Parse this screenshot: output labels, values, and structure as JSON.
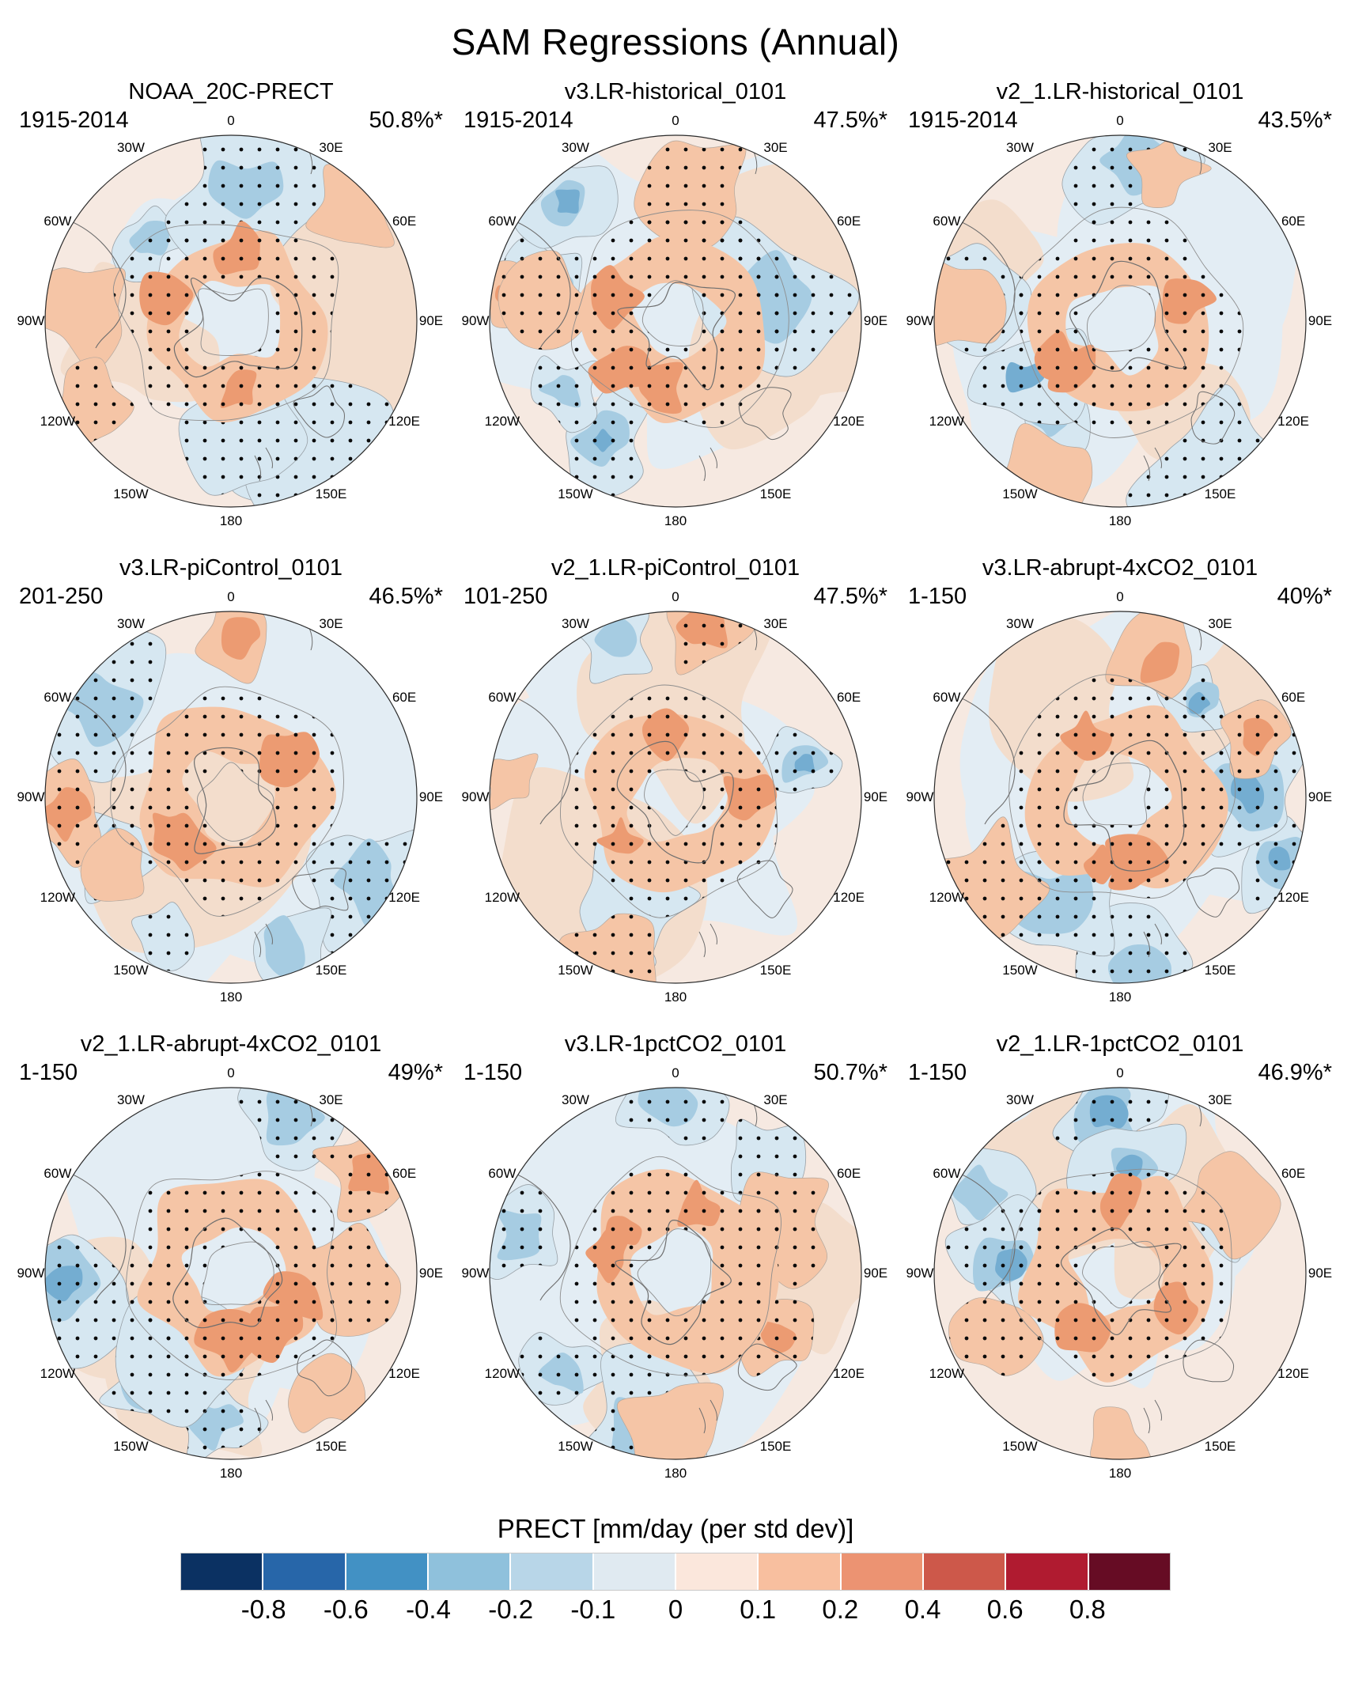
{
  "page": {
    "title": "SAM Regressions (Annual)"
  },
  "panels": [
    {
      "title": "NOAA_20C-PRECT",
      "period": "1915-2014",
      "variance": "50.8%*"
    },
    {
      "title": "v3.LR-historical_0101",
      "period": "1915-2014",
      "variance": "47.5%*"
    },
    {
      "title": "v2_1.LR-historical_0101",
      "period": "1915-2014",
      "variance": "43.5%*"
    },
    {
      "title": "v3.LR-piControl_0101",
      "period": "201-250",
      "variance": "46.5%*"
    },
    {
      "title": "v2_1.LR-piControl_0101",
      "period": "101-250",
      "variance": "47.5%*"
    },
    {
      "title": "v3.LR-abrupt-4xCO2_0101",
      "period": "1-150",
      "variance": "40%*"
    },
    {
      "title": "v2_1.LR-abrupt-4xCO2_0101",
      "period": "1-150",
      "variance": "49%*"
    },
    {
      "title": "v3.LR-1pctCO2_0101",
      "period": "1-150",
      "variance": "50.7%*"
    },
    {
      "title": "v2_1.LR-1pctCO2_0101",
      "period": "1-150",
      "variance": "46.9%*"
    }
  ],
  "map_labels": [
    "0",
    "30E",
    "60E",
    "90E",
    "120E",
    "150E",
    "180",
    "150W",
    "120W",
    "90W",
    "60W",
    "30W"
  ],
  "colorbar": {
    "title": "PRECT [mm/day (per std dev)]",
    "ticks": [
      "-0.8",
      "-0.6",
      "-0.4",
      "-0.2",
      "-0.1",
      "0",
      "0.1",
      "0.2",
      "0.4",
      "0.6",
      "0.8"
    ],
    "colors": [
      "#0b3162",
      "#2766a9",
      "#4291c4",
      "#8fc1dc",
      "#b8d6e8",
      "#e0eaf1",
      "#fbe7dc",
      "#f8bf9f",
      "#ec9372",
      "#cd584a",
      "#b01b30",
      "#660c24"
    ]
  },
  "chart_data": {
    "type": "table",
    "title": "SAM Regressions (Annual)",
    "description": "3x3 grid of south polar stereographic maps of precipitation regressed on the SAM index; stippling marks significant regions; percentage is SAM variance explained (* = significant).",
    "projection": "south-polar-stereographic",
    "columns": [
      "panel",
      "period",
      "variance_explained_pct",
      "significant"
    ],
    "rows": [
      [
        "NOAA_20C-PRECT",
        "1915-2014",
        50.8,
        true
      ],
      [
        "v3.LR-historical_0101",
        "1915-2014",
        47.5,
        true
      ],
      [
        "v2_1.LR-historical_0101",
        "1915-2014",
        43.5,
        true
      ],
      [
        "v3.LR-piControl_0101",
        "201-250",
        46.5,
        true
      ],
      [
        "v2_1.LR-piControl_0101",
        "101-250",
        47.5,
        true
      ],
      [
        "v3.LR-abrupt-4xCO2_0101",
        "1-150",
        40.0,
        true
      ],
      [
        "v2_1.LR-abrupt-4xCO2_0101",
        "1-150",
        49.0,
        true
      ],
      [
        "v3.LR-1pctCO2_0101",
        "1-150",
        50.7,
        true
      ],
      [
        "v2_1.LR-1pctCO2_0101",
        "1-150",
        46.9,
        true
      ]
    ],
    "colorbar": {
      "label": "PRECT [mm/day (per std dev)]",
      "tick_values": [
        -0.8,
        -0.6,
        -0.4,
        -0.2,
        -0.1,
        0,
        0.1,
        0.2,
        0.4,
        0.6,
        0.8
      ],
      "n_color_segments": 12
    },
    "longitude_labels": [
      "0",
      "30E",
      "60E",
      "90E",
      "120E",
      "150E",
      "180",
      "150W",
      "120W",
      "90W",
      "60W",
      "30W"
    ]
  }
}
